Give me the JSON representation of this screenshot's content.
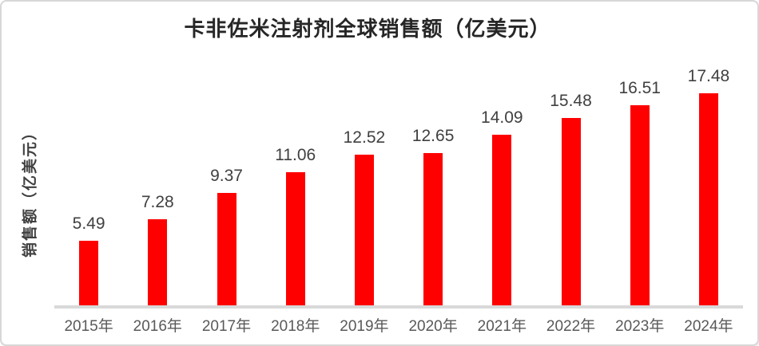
{
  "window": {
    "background": "#ffffff",
    "border_color": "#d7d7d7"
  },
  "chart_data": {
    "type": "bar",
    "title": "卡非佐米注射剂全球销售额（亿美元）",
    "ylabel": "销售额（亿美元）",
    "xlabel": "",
    "categories": [
      "2015年",
      "2016年",
      "2017年",
      "2018年",
      "2019年",
      "2020年",
      "2021年",
      "2022年",
      "2023年",
      "2024年"
    ],
    "values": [
      5.49,
      7.28,
      9.37,
      11.06,
      12.52,
      12.65,
      14.09,
      15.48,
      16.51,
      17.48
    ],
    "value_labels_shown": true,
    "value_label_decimals": 2,
    "ylim": [
      0,
      20
    ],
    "grid": false,
    "legend": "none",
    "y_axis_ticks_shown": false,
    "colors": {
      "bar": "#ff0000",
      "axis_line": "#d9d9d9",
      "title_text": "#262626",
      "value_label_text": "#404040",
      "tick_label_text": "#595959",
      "y_axis_label_text": "#404040"
    }
  }
}
